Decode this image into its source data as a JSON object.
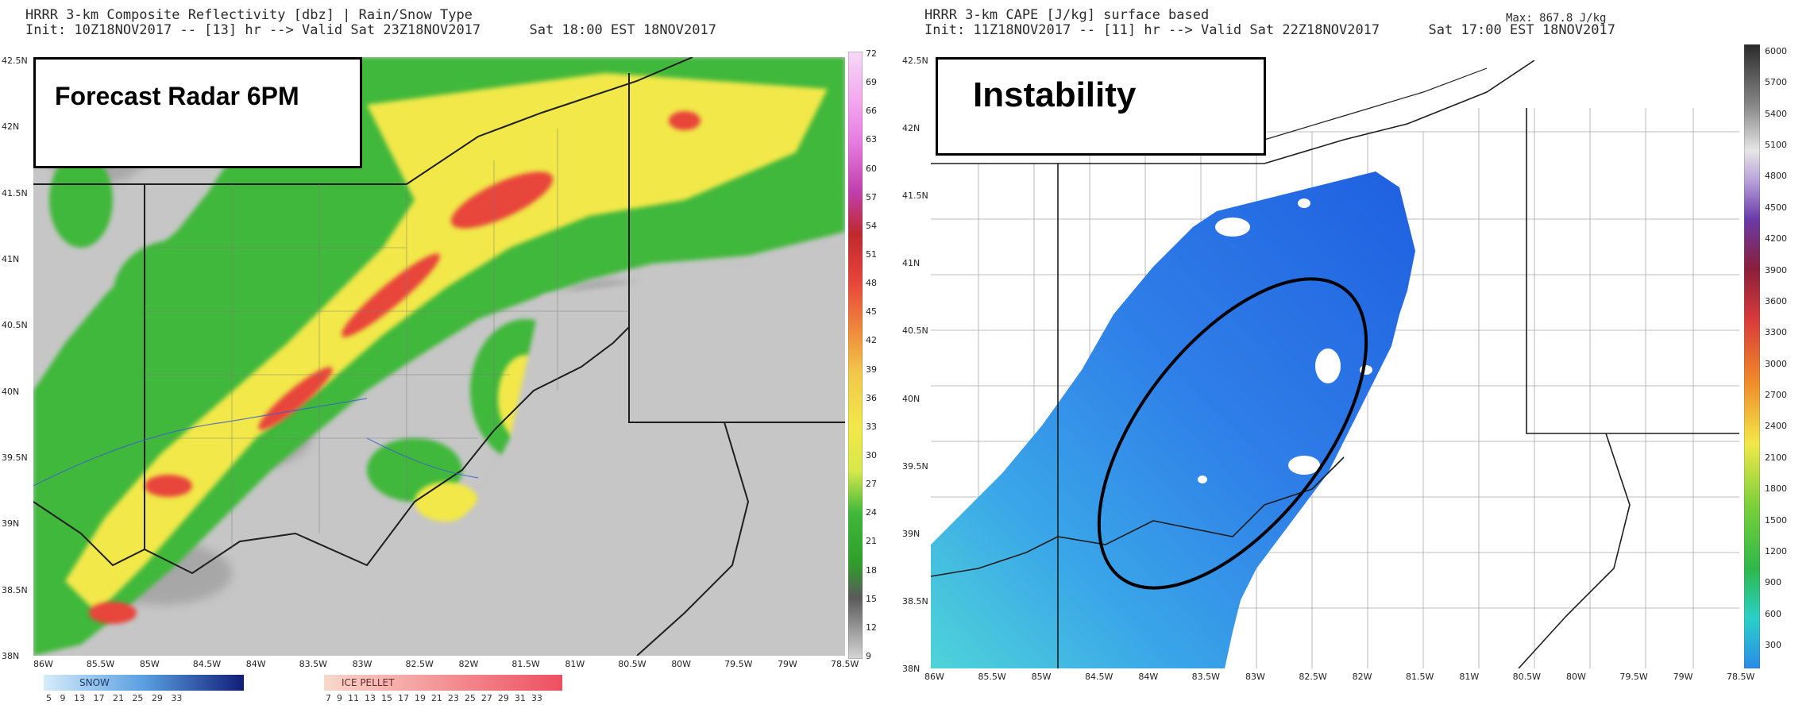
{
  "left_panel": {
    "title_line1": "HRRR 3-km Composite Reflectivity [dbz] | Rain/Snow Type",
    "title_line2": "Init: 10Z18NOV2017 -- [13] hr --> Valid Sat 23Z18NOV2017      Sat 18:00 EST 18NOV2017",
    "annotation": "Forecast Radar 6PM",
    "lat_labels": [
      "42.5N",
      "42N",
      "41.5N",
      "41N",
      "40.5N",
      "40N",
      "39.5N",
      "39N",
      "38.5N",
      "38N"
    ],
    "lon_labels": [
      "86W",
      "85.5W",
      "85W",
      "84.5W",
      "84W",
      "83.5W",
      "83W",
      "82.5W",
      "82W",
      "81.5W",
      "81W",
      "80.5W",
      "80W",
      "79.5W",
      "79W",
      "78.5W"
    ],
    "colorbar_labels": [
      "72",
      "69",
      "66",
      "63",
      "60",
      "57",
      "54",
      "51",
      "48",
      "45",
      "42",
      "39",
      "36",
      "33",
      "30",
      "27",
      "24",
      "21",
      "18",
      "15",
      "12",
      "9"
    ],
    "snow_legend": {
      "title": "SNOW",
      "values": "5   9   13   17   21   25   29   33"
    },
    "ice_legend": {
      "title": "ICE PELLET",
      "values": "7  9  11  13  15  17  19  21  23  25  27  29  31  33"
    }
  },
  "right_panel": {
    "title_line1": "HRRR 3-km CAPE [J/kg] surface based",
    "max_label": "Max: 867.8 J/kg",
    "title_line2": "Init: 11Z18NOV2017 -- [11] hr --> Valid Sat 22Z18NOV2017      Sat 17:00 EST 18NOV2017",
    "annotation": "Instability",
    "lat_labels": [
      "42.5N",
      "42N",
      "41.5N",
      "41N",
      "40.5N",
      "40N",
      "39.5N",
      "39N",
      "38.5N",
      "38N"
    ],
    "lon_labels": [
      "86W",
      "85.5W",
      "85W",
      "84.5W",
      "84W",
      "83.5W",
      "83W",
      "82.5W",
      "82W",
      "81.5W",
      "81W",
      "80.5W",
      "80W",
      "79.5W",
      "79W",
      "78.5W"
    ],
    "colorbar_labels": [
      "6000",
      "5700",
      "5400",
      "5100",
      "4800",
      "4500",
      "4200",
      "3900",
      "3600",
      "3300",
      "3000",
      "2700",
      "2400",
      "2100",
      "1800",
      "1500",
      "1200",
      "900",
      "600",
      "300"
    ]
  },
  "colors": {
    "radar_gray": "#c6c6c6",
    "radar_green": "#3fb83a",
    "radar_yellow": "#f2e84a",
    "radar_red": "#e8453a",
    "cape_blue": "#2f7fe8",
    "cape_cyan": "#4fd4d8"
  }
}
